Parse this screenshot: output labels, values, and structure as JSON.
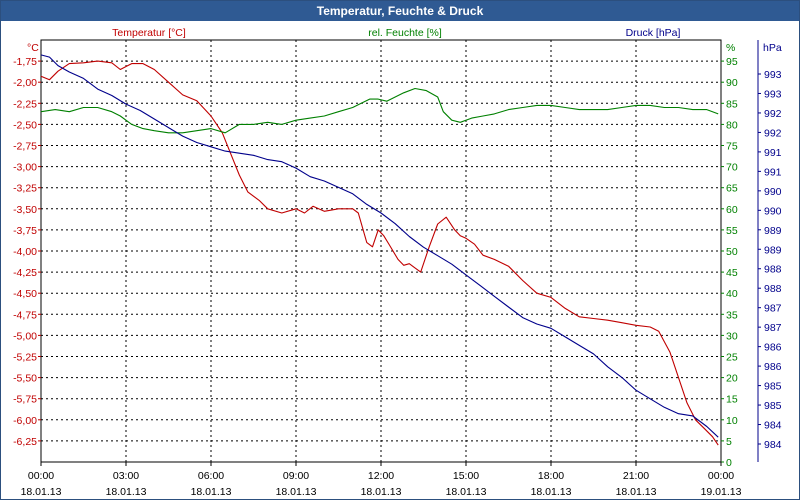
{
  "window": {
    "title": "Temperatur, Feuchte & Druck"
  },
  "chart_data": {
    "type": "line",
    "title": "Temperatur, Feuchte & Druck",
    "grid": true,
    "x_ticks": [
      {
        "time": "00:00",
        "date": "18.01.13"
      },
      {
        "time": "03:00",
        "date": "18.01.13"
      },
      {
        "time": "06:00",
        "date": "18.01.13"
      },
      {
        "time": "09:00",
        "date": "18.01.13"
      },
      {
        "time": "12:00",
        "date": "18.01.13"
      },
      {
        "time": "15:00",
        "date": "18.01.13"
      },
      {
        "time": "18:00",
        "date": "18.01.13"
      },
      {
        "time": "21:00",
        "date": "18.01.13"
      },
      {
        "time": "00:00",
        "date": "19.01.13"
      }
    ],
    "x_range_hours": [
      0,
      24
    ],
    "axes": {
      "temperature": {
        "unit": "°C",
        "label": "Temperatur [°C]",
        "color": "#c00000",
        "range": [
          -6.5,
          -1.5
        ],
        "tick_labels": [
          "-1,75",
          "-2,00",
          "-2,25",
          "-2,50",
          "-2,75",
          "-3,00",
          "-3,25",
          "-3,50",
          "-3,75",
          "-4,00",
          "-4,25",
          "-4,50",
          "-4,75",
          "-5,00",
          "-5,25",
          "-5,50",
          "-5,75",
          "-6,00",
          "-6,25"
        ]
      },
      "humidity": {
        "unit": "%",
        "label": "rel. Feuchte [%]",
        "color": "#008000",
        "range": [
          0,
          100
        ],
        "tick_labels": [
          "0",
          "5",
          "10",
          "15",
          "20",
          "25",
          "30",
          "35",
          "40",
          "45",
          "50",
          "55",
          "60",
          "65",
          "70",
          "75",
          "80",
          "85",
          "90",
          "95"
        ]
      },
      "pressure": {
        "unit": "hPa",
        "label": "Druck [hPa]",
        "color": "#00008b",
        "range": [
          983.72,
          993.6
        ],
        "tick_labels": [
          "984",
          "984",
          "985",
          "985",
          "986",
          "986",
          "987",
          "987",
          "988",
          "988",
          "989",
          "989",
          "990",
          "990",
          "991",
          "991",
          "992",
          "992",
          "993",
          "993"
        ]
      }
    },
    "series": [
      {
        "name": "Temperatur [°C]",
        "axis": "temperature",
        "color": "#c00000",
        "points": [
          [
            0,
            -1.93
          ],
          [
            0.3,
            -1.97
          ],
          [
            0.6,
            -1.87
          ],
          [
            1,
            -1.78
          ],
          [
            1.5,
            -1.77
          ],
          [
            2,
            -1.75
          ],
          [
            2.5,
            -1.77
          ],
          [
            2.8,
            -1.85
          ],
          [
            3.2,
            -1.78
          ],
          [
            3.6,
            -1.78
          ],
          [
            4,
            -1.85
          ],
          [
            4.5,
            -2.0
          ],
          [
            5,
            -2.15
          ],
          [
            5.5,
            -2.22
          ],
          [
            6,
            -2.4
          ],
          [
            6.4,
            -2.6
          ],
          [
            6.7,
            -2.85
          ],
          [
            7,
            -3.1
          ],
          [
            7.3,
            -3.3
          ],
          [
            7.7,
            -3.4
          ],
          [
            8,
            -3.5
          ],
          [
            8.5,
            -3.55
          ],
          [
            9,
            -3.5
          ],
          [
            9.3,
            -3.55
          ],
          [
            9.6,
            -3.47
          ],
          [
            10,
            -3.53
          ],
          [
            10.5,
            -3.5
          ],
          [
            11,
            -3.5
          ],
          [
            11.2,
            -3.55
          ],
          [
            11.5,
            -3.9
          ],
          [
            11.7,
            -3.95
          ],
          [
            11.9,
            -3.75
          ],
          [
            12.1,
            -3.82
          ],
          [
            12.3,
            -3.93
          ],
          [
            12.6,
            -4.1
          ],
          [
            12.8,
            -4.17
          ],
          [
            13,
            -4.15
          ],
          [
            13.2,
            -4.2
          ],
          [
            13.4,
            -4.25
          ],
          [
            13.7,
            -3.95
          ],
          [
            14,
            -3.68
          ],
          [
            14.3,
            -3.6
          ],
          [
            14.6,
            -3.75
          ],
          [
            14.8,
            -3.82
          ],
          [
            15,
            -3.85
          ],
          [
            15.3,
            -3.92
          ],
          [
            15.6,
            -4.05
          ],
          [
            16,
            -4.1
          ],
          [
            16.5,
            -4.18
          ],
          [
            17,
            -4.35
          ],
          [
            17.5,
            -4.5
          ],
          [
            18,
            -4.55
          ],
          [
            18.5,
            -4.68
          ],
          [
            19,
            -4.78
          ],
          [
            19.5,
            -4.8
          ],
          [
            20,
            -4.82
          ],
          [
            20.5,
            -4.85
          ],
          [
            21,
            -4.88
          ],
          [
            21.5,
            -4.9
          ],
          [
            21.8,
            -4.95
          ],
          [
            22.2,
            -5.2
          ],
          [
            22.5,
            -5.5
          ],
          [
            22.8,
            -5.8
          ],
          [
            23.1,
            -6.0
          ],
          [
            23.4,
            -6.1
          ],
          [
            23.7,
            -6.2
          ],
          [
            23.9,
            -6.3
          ]
        ]
      },
      {
        "name": "rel. Feuchte [%]",
        "axis": "humidity",
        "color": "#008000",
        "points": [
          [
            0,
            83
          ],
          [
            0.5,
            83.5
          ],
          [
            1,
            83
          ],
          [
            1.5,
            84
          ],
          [
            2,
            84
          ],
          [
            2.5,
            83
          ],
          [
            2.8,
            82
          ],
          [
            3.2,
            80
          ],
          [
            3.6,
            79
          ],
          [
            4,
            78.5
          ],
          [
            4.5,
            78
          ],
          [
            5,
            78
          ],
          [
            5.5,
            78.5
          ],
          [
            6,
            79
          ],
          [
            6.5,
            78
          ],
          [
            7,
            80
          ],
          [
            7.5,
            80
          ],
          [
            8,
            80.5
          ],
          [
            8.5,
            80
          ],
          [
            9,
            81
          ],
          [
            9.5,
            81.5
          ],
          [
            10,
            82
          ],
          [
            10.5,
            83
          ],
          [
            11,
            84
          ],
          [
            11.3,
            85
          ],
          [
            11.6,
            86
          ],
          [
            11.9,
            86
          ],
          [
            12.2,
            85.5
          ],
          [
            12.5,
            86.5
          ],
          [
            12.8,
            87.5
          ],
          [
            13.2,
            88.5
          ],
          [
            13.6,
            88
          ],
          [
            14,
            86.5
          ],
          [
            14.2,
            83
          ],
          [
            14.5,
            81
          ],
          [
            14.8,
            80.5
          ],
          [
            15.2,
            81.5
          ],
          [
            15.6,
            82
          ],
          [
            16,
            82.5
          ],
          [
            16.5,
            83.5
          ],
          [
            17,
            84
          ],
          [
            17.5,
            84.5
          ],
          [
            18,
            84.5
          ],
          [
            18.5,
            84
          ],
          [
            19,
            83.5
          ],
          [
            19.5,
            83.5
          ],
          [
            20,
            83.5
          ],
          [
            20.5,
            84
          ],
          [
            21,
            84.5
          ],
          [
            21.5,
            84.5
          ],
          [
            22,
            84
          ],
          [
            22.5,
            84
          ],
          [
            23,
            83.5
          ],
          [
            23.5,
            83.5
          ],
          [
            23.9,
            82.5
          ]
        ]
      },
      {
        "name": "Druck [hPa]",
        "axis": "pressure",
        "color": "#00008b",
        "points": [
          [
            0,
            993.25
          ],
          [
            0.3,
            993.2
          ],
          [
            0.6,
            993.0
          ],
          [
            1,
            992.85
          ],
          [
            1.5,
            992.7
          ],
          [
            2,
            992.45
          ],
          [
            2.5,
            992.3
          ],
          [
            3,
            992.1
          ],
          [
            3.5,
            991.95
          ],
          [
            4,
            991.75
          ],
          [
            4.5,
            991.55
          ],
          [
            5,
            991.35
          ],
          [
            5.5,
            991.2
          ],
          [
            6,
            991.1
          ],
          [
            6.5,
            991.0
          ],
          [
            7,
            990.95
          ],
          [
            7.5,
            990.9
          ],
          [
            8,
            990.8
          ],
          [
            8.5,
            990.75
          ],
          [
            9,
            990.6
          ],
          [
            9.5,
            990.4
          ],
          [
            10,
            990.3
          ],
          [
            10.5,
            990.15
          ],
          [
            11,
            990.0
          ],
          [
            11.5,
            989.75
          ],
          [
            12,
            989.55
          ],
          [
            12.5,
            989.3
          ],
          [
            13,
            989.0
          ],
          [
            13.5,
            988.75
          ],
          [
            14,
            988.55
          ],
          [
            14.5,
            988.35
          ],
          [
            15,
            988.1
          ],
          [
            15.5,
            987.85
          ],
          [
            16,
            987.6
          ],
          [
            16.5,
            987.35
          ],
          [
            17,
            987.1
          ],
          [
            17.5,
            986.95
          ],
          [
            18,
            986.85
          ],
          [
            18.5,
            986.65
          ],
          [
            19,
            986.45
          ],
          [
            19.5,
            986.25
          ],
          [
            20,
            985.95
          ],
          [
            20.5,
            985.7
          ],
          [
            21,
            985.4
          ],
          [
            21.5,
            985.2
          ],
          [
            22,
            985.0
          ],
          [
            22.5,
            984.85
          ],
          [
            23,
            984.8
          ],
          [
            23.5,
            984.55
          ],
          [
            23.9,
            984.3
          ]
        ]
      }
    ]
  }
}
